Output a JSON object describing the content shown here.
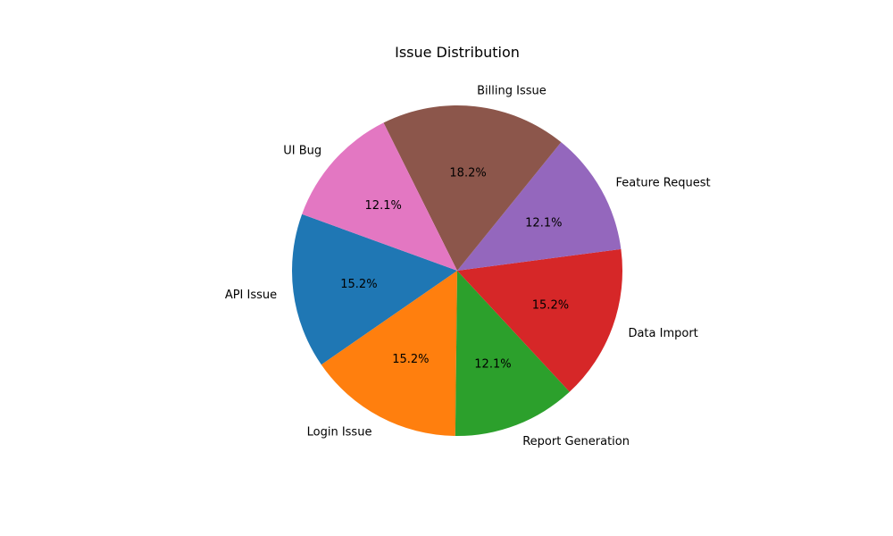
{
  "chart_data": {
    "type": "pie",
    "title": "Issue Distribution",
    "start_angle_deg": 160,
    "direction": "counterclockwise",
    "slices": [
      {
        "label": "API Issue",
        "percent": 15.2,
        "pct_label": "15.2%",
        "color": "#1f77b4"
      },
      {
        "label": "Login Issue",
        "percent": 15.2,
        "pct_label": "15.2%",
        "color": "#ff7f0e"
      },
      {
        "label": "Report Generation",
        "percent": 12.1,
        "pct_label": "12.1%",
        "color": "#2ca02c"
      },
      {
        "label": "Data Import",
        "percent": 15.2,
        "pct_label": "15.2%",
        "color": "#d62728"
      },
      {
        "label": "Feature Request",
        "percent": 12.1,
        "pct_label": "12.1%",
        "color": "#9467bd"
      },
      {
        "label": "Billing Issue",
        "percent": 18.2,
        "pct_label": "18.2%",
        "color": "#8c564b"
      },
      {
        "label": "UI Bug",
        "percent": 12.1,
        "pct_label": "12.1%",
        "color": "#e377c2"
      }
    ]
  }
}
